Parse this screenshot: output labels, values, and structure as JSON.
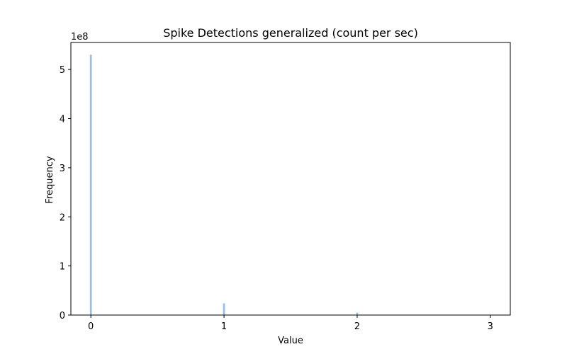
{
  "chart_data": {
    "type": "bar",
    "title": "Spike Detections generalized (count per sec)",
    "xlabel": "Value",
    "ylabel": "Frequency",
    "y_offset_label": "1e8",
    "xlim": [
      -0.15,
      3.15
    ],
    "ylim": [
      0,
      5.55
    ],
    "x_ticks": [
      0,
      1,
      2,
      3
    ],
    "y_ticks": [
      0,
      1,
      2,
      3,
      4,
      5
    ],
    "bin_width": 0.015,
    "bars": [
      {
        "x": 0,
        "value": 5.3
      },
      {
        "x": 1,
        "value": 0.24
      },
      {
        "x": 2,
        "value": 0.05
      },
      {
        "x": 3,
        "value": 0.004
      }
    ],
    "bar_color": "#9ec0df",
    "grid": false
  }
}
